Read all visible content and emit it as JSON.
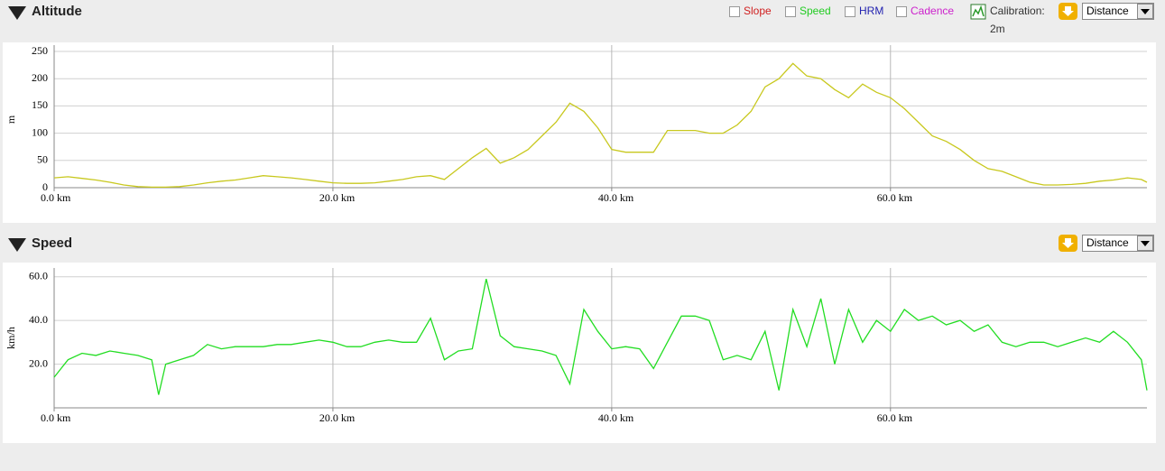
{
  "panels": [
    {
      "title": "Altitude",
      "toggles": [
        {
          "label": "Slope",
          "color": "#d02020"
        },
        {
          "label": "Speed",
          "color": "#22cc22"
        },
        {
          "label": "HRM",
          "color": "#2222b0"
        },
        {
          "label": "Cadence",
          "color": "#cc22cc"
        }
      ],
      "calibration_label": "Calibration:",
      "calibration_value": "2m",
      "dropdown": "Distance"
    },
    {
      "title": "Speed",
      "dropdown": "Distance"
    }
  ],
  "chart_data": [
    {
      "type": "line",
      "y_label": "m",
      "color": "#c8c81e",
      "grid": true,
      "x": [
        0,
        1,
        2,
        3,
        4,
        5,
        6,
        7,
        8,
        9,
        10,
        11,
        12,
        13,
        14,
        15,
        16,
        17,
        18,
        19,
        20,
        21,
        22,
        23,
        24,
        25,
        26,
        27,
        28,
        29,
        30,
        31,
        32,
        33,
        34,
        35,
        36,
        37,
        38,
        39,
        40,
        41,
        42,
        43,
        44,
        45,
        46,
        47,
        48,
        49,
        50,
        51,
        52,
        53,
        54,
        55,
        56,
        57,
        58,
        59,
        60,
        61,
        62,
        63,
        64,
        65,
        66,
        67,
        68,
        69,
        70,
        71,
        72,
        73,
        74,
        75,
        76,
        77,
        78,
        78.4
      ],
      "values": [
        18,
        20,
        17,
        14,
        10,
        5,
        2,
        1,
        1,
        2,
        5,
        9,
        12,
        14,
        18,
        22,
        20,
        18,
        15,
        12,
        9,
        8,
        8,
        9,
        12,
        15,
        20,
        22,
        15,
        35,
        55,
        72,
        45,
        55,
        70,
        95,
        120,
        155,
        140,
        110,
        70,
        65,
        65,
        65,
        105,
        105,
        105,
        100,
        100,
        115,
        140,
        185,
        200,
        228,
        205,
        200,
        180,
        165,
        190,
        175,
        165,
        145,
        120,
        95,
        85,
        70,
        50,
        35,
        30,
        20,
        10,
        5,
        5,
        6,
        8,
        12,
        14,
        18,
        15,
        10
      ],
      "xlim": [
        0,
        78.4
      ],
      "ylim": [
        0,
        250
      ],
      "xticks": [
        {
          "value": 0,
          "label": "0.0 km"
        },
        {
          "value": 20,
          "label": "20.0 km"
        },
        {
          "value": 40,
          "label": "40.0 km"
        },
        {
          "value": 60,
          "label": "60.0 km"
        }
      ],
      "yticks": [
        0,
        50,
        100,
        150,
        200,
        250
      ]
    },
    {
      "type": "line",
      "y_label": "km/h",
      "color": "#22dd22",
      "grid": true,
      "x": [
        0,
        0.5,
        1,
        2,
        3,
        4,
        5,
        6,
        7,
        7.5,
        8,
        9,
        10,
        11,
        12,
        13,
        14,
        15,
        16,
        17,
        18,
        19,
        20,
        21,
        22,
        23,
        24,
        25,
        26,
        27,
        28,
        29,
        30,
        31,
        32,
        33,
        34,
        35,
        36,
        37,
        38,
        39,
        40,
        41,
        42,
        43,
        44,
        45,
        46,
        47,
        48,
        49,
        50,
        51,
        52,
        53,
        54,
        55,
        56,
        57,
        58,
        59,
        60,
        61,
        62,
        63,
        64,
        65,
        66,
        67,
        68,
        69,
        70,
        71,
        72,
        73,
        74,
        75,
        76,
        77,
        78,
        78.4
      ],
      "values": [
        14,
        18,
        22,
        25,
        24,
        26,
        25,
        24,
        22,
        6,
        20,
        22,
        24,
        29,
        27,
        28,
        28,
        28,
        29,
        29,
        30,
        31,
        30,
        28,
        28,
        30,
        31,
        30,
        30,
        41,
        22,
        26,
        27,
        59,
        33,
        28,
        27,
        26,
        24,
        11,
        45,
        35,
        27,
        28,
        27,
        18,
        30,
        42,
        42,
        40,
        22,
        24,
        22,
        35,
        8,
        45,
        28,
        50,
        20,
        45,
        30,
        40,
        35,
        45,
        40,
        42,
        38,
        40,
        35,
        38,
        30,
        28,
        30,
        30,
        28,
        30,
        32,
        30,
        35,
        30,
        22,
        8
      ],
      "xlim": [
        0,
        78.4
      ],
      "ylim": [
        0,
        64
      ],
      "xticks": [
        {
          "value": 0,
          "label": "0.0 km"
        },
        {
          "value": 20,
          "label": "20.0 km"
        },
        {
          "value": 40,
          "label": "40.0 km"
        },
        {
          "value": 60,
          "label": "60.0 km"
        }
      ],
      "yticks": [
        {
          "value": 20,
          "label": "20.0"
        },
        {
          "value": 40,
          "label": "40.0"
        },
        {
          "value": 60,
          "label": "60.0"
        }
      ]
    }
  ]
}
